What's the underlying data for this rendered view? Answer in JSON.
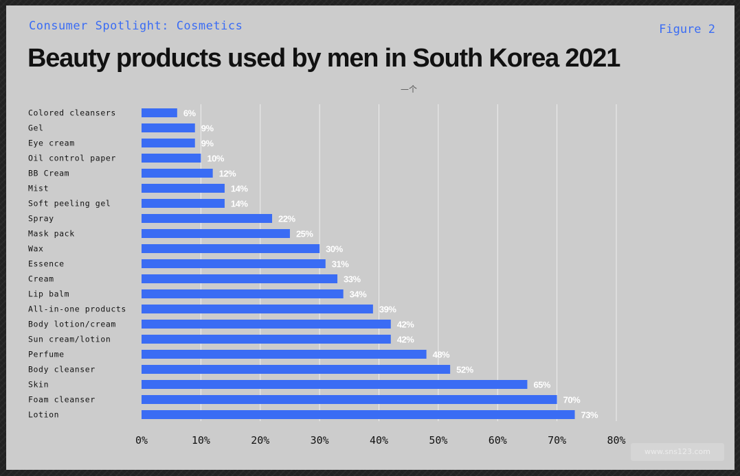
{
  "header": {
    "kicker": "Consumer Spotlight: Cosmetics",
    "figure": "Figure 2",
    "title": "Beauty products used by men in South Korea 2021",
    "cursor_glyph": "—个"
  },
  "watermark": "www.sns123.com",
  "colors": {
    "bar": "#3a6cf4",
    "accent": "#3a6cf4",
    "background": "#cccccc",
    "grid": "#eeeeee",
    "value_label": "#ffffff"
  },
  "chart_data": {
    "type": "bar",
    "orientation": "horizontal",
    "title": "Beauty products used by men in South Korea 2021",
    "categories": [
      "Colored cleansers",
      "Gel",
      "Eye cream",
      "Oil control paper",
      "BB Cream",
      "Mist",
      "Soft peeling gel",
      "Spray",
      "Mask pack",
      "Wax",
      "Essence",
      "Cream",
      "Lip balm",
      "All-in-one products",
      "Body lotion/cream",
      "Sun cream/lotion",
      "Perfume",
      "Body cleanser",
      "Skin",
      "Foam cleanser",
      "Lotion"
    ],
    "values": [
      6,
      9,
      9,
      10,
      12,
      14,
      14,
      22,
      25,
      30,
      31,
      33,
      34,
      39,
      42,
      42,
      48,
      52,
      65,
      70,
      73
    ],
    "value_labels": [
      "6%",
      "9%",
      "9%",
      "10%",
      "12%",
      "14%",
      "14%",
      "22%",
      "25%",
      "30%",
      "31%",
      "33%",
      "34%",
      "39%",
      "42%",
      "42%",
      "48%",
      "52%",
      "65%",
      "70%",
      "73%"
    ],
    "xticks": [
      0,
      10,
      20,
      30,
      40,
      50,
      60,
      70,
      80
    ],
    "xtick_labels": [
      "0%",
      "10%",
      "20%",
      "30%",
      "40%",
      "50%",
      "60%",
      "70%",
      "80%"
    ],
    "xlim": [
      0,
      80
    ],
    "xlabel": "",
    "ylabel": "",
    "grid": true
  }
}
